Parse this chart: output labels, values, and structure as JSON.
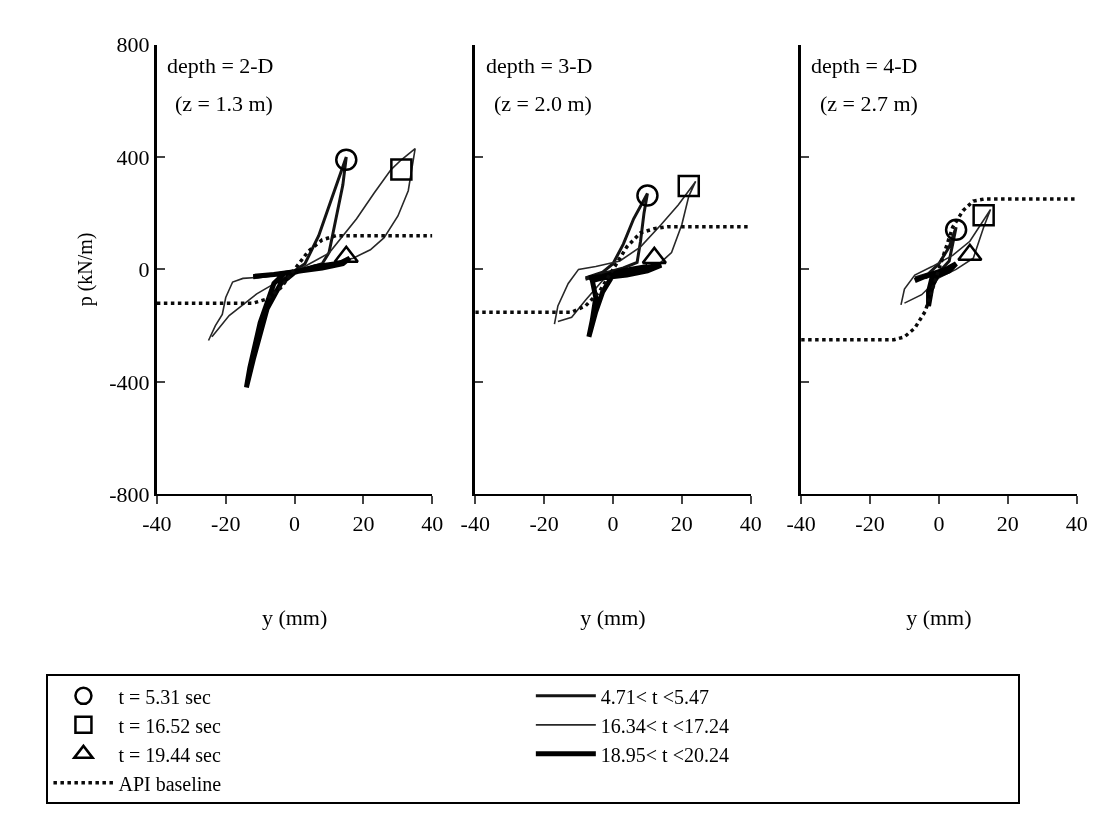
{
  "chart_data": [
    {
      "type": "line",
      "annotations": [
        "depth = 2-D",
        "(z = 1.3 m)"
      ],
      "xlabel": "y (mm)",
      "ylabel": "p (kN/m)",
      "xlim": [
        -40,
        40
      ],
      "xticks": [
        -40,
        -20,
        0,
        20,
        40
      ],
      "ylim": [
        -800,
        800
      ],
      "yticks": [
        -800,
        -400,
        0,
        400,
        800
      ],
      "grid": false,
      "legend": "bottom",
      "series": [
        {
          "name": "t = 5.31 sec",
          "type": "scatter",
          "marker": "circle",
          "color": "#000000",
          "x": [
            15
          ],
          "values": [
            390
          ]
        },
        {
          "name": "4.71< t <5.47",
          "line_style": "solid",
          "marker": "none",
          "color": "#141414",
          "x": [
            -12,
            -5,
            0,
            3,
            7,
            11,
            15,
            14,
            12,
            10,
            8,
            4,
            0,
            -6,
            -12
          ],
          "values": [
            -25,
            -15,
            -5,
            20,
            120,
            260,
            400,
            300,
            180,
            60,
            20,
            5,
            -8,
            -20,
            -30
          ]
        },
        {
          "name": "t = 16.52 sec",
          "type": "scatter",
          "marker": "square",
          "color": "#000000",
          "x": [
            31
          ],
          "values": [
            355
          ]
        },
        {
          "name": "16.34< t <17.24",
          "line_style": "solid",
          "marker": "none",
          "color": "#282828",
          "x": [
            -25,
            -23,
            -21,
            -20,
            -18,
            -15,
            -10,
            -3,
            3,
            10,
            17,
            22,
            26,
            30,
            33,
            35,
            31,
            28,
            23,
            18,
            10,
            0,
            -11,
            -19,
            -24
          ],
          "values": [
            -253,
            -200,
            -160,
            -100,
            -45,
            -32,
            -28,
            -15,
            5,
            20,
            40,
            70,
            113,
            190,
            280,
            430,
            390,
            355,
            270,
            180,
            58,
            -9,
            -87,
            -164,
            -240
          ]
        },
        {
          "name": "t = 19.44 sec",
          "type": "scatter",
          "marker": "triangle",
          "color": "#000000",
          "x": [
            15
          ],
          "values": [
            45
          ]
        },
        {
          "name": "18.95< t <20.24",
          "line_style": "solid",
          "marker": "none",
          "color": "#000000",
          "x": [
            -12,
            -6,
            0,
            6,
            12,
            16,
            14,
            8,
            2,
            -3,
            -6,
            -10,
            -13,
            -14,
            -12,
            -8,
            -4,
            0,
            6,
            12
          ],
          "values": [
            -25,
            -18,
            -8,
            5,
            15,
            40,
            20,
            5,
            -5,
            -15,
            -50,
            -190,
            -350,
            -420,
            -320,
            -140,
            -50,
            -10,
            10,
            20
          ]
        },
        {
          "name": "API baseline",
          "line_style": "dotted",
          "marker": "none",
          "color": "#0a0a0a",
          "x": [
            -40,
            -12,
            -8,
            -4,
            0,
            4,
            8,
            12,
            40
          ],
          "values": [
            -120,
            -120,
            -105,
            -65,
            0,
            65,
            105,
            120,
            120
          ]
        }
      ]
    },
    {
      "type": "line",
      "annotations": [
        "depth = 3-D",
        "(z = 2.0 m)"
      ],
      "xlabel": "y (mm)",
      "xlim": [
        -40,
        40
      ],
      "xticks": [
        -40,
        -20,
        0,
        20,
        40
      ],
      "ylim": [
        -800,
        800
      ],
      "yticks": [
        -800,
        -400,
        0,
        400,
        800
      ],
      "grid": false,
      "tick_labels": "x",
      "series": [
        {
          "type": "scatter",
          "marker": "circle",
          "color": "#000000",
          "x": [
            10
          ],
          "values": [
            263
          ]
        },
        {
          "line_style": "solid",
          "marker": "none",
          "color": "#141414",
          "x": [
            -8,
            -3,
            0,
            3,
            6,
            10,
            9,
            8,
            7,
            3,
            -3,
            -8
          ],
          "values": [
            -30,
            -10,
            20,
            90,
            180,
            270,
            200,
            100,
            25,
            5,
            -15,
            -35
          ]
        },
        {
          "type": "scatter",
          "marker": "square",
          "color": "#000000",
          "x": [
            22
          ],
          "values": [
            297
          ]
        },
        {
          "line_style": "solid",
          "marker": "none",
          "color": "#282828",
          "x": [
            -17,
            -16,
            -13,
            -10,
            -5,
            2,
            8,
            14,
            19,
            24,
            22,
            20,
            17,
            13,
            5,
            -2,
            -8,
            -12,
            -16
          ],
          "values": [
            -195,
            -130,
            -50,
            0,
            10,
            30,
            80,
            160,
            230,
            313,
            260,
            160,
            60,
            15,
            -10,
            -25,
            -110,
            -170,
            -185
          ]
        },
        {
          "type": "scatter",
          "marker": "triangle",
          "color": "#000000",
          "x": [
            12
          ],
          "values": [
            41
          ]
        },
        {
          "line_style": "solid",
          "marker": "none",
          "color": "#000000",
          "x": [
            -7,
            -3,
            3,
            8,
            14,
            10,
            4,
            -3,
            -6,
            -5,
            -6,
            -7,
            -5,
            -3,
            0,
            5,
            10
          ],
          "values": [
            -30,
            -25,
            -5,
            5,
            15,
            -5,
            -20,
            -30,
            -40,
            -100,
            -180,
            -240,
            -150,
            -80,
            -20,
            0,
            10
          ]
        },
        {
          "line_style": "dotted",
          "marker": "none",
          "color": "#0a0a0a",
          "x": [
            -40,
            -12,
            -8,
            -4,
            0,
            4,
            8,
            12,
            16,
            40
          ],
          "values": [
            -152,
            -152,
            -130,
            -80,
            0,
            80,
            130,
            145,
            152,
            152
          ]
        }
      ]
    },
    {
      "type": "line",
      "annotations": [
        "depth = 4-D",
        "(z = 2.7 m)"
      ],
      "xlabel": "y (mm)",
      "xlim": [
        -40,
        40
      ],
      "xticks": [
        -40,
        -20,
        0,
        20,
        40
      ],
      "ylim": [
        -800,
        800
      ],
      "yticks": [
        -800,
        -400,
        0,
        400,
        800
      ],
      "grid": false,
      "tick_labels": "x",
      "series": [
        {
          "type": "scatter",
          "marker": "circle",
          "color": "#000000",
          "x": [
            5
          ],
          "values": [
            141
          ]
        },
        {
          "line_style": "solid",
          "marker": "none",
          "color": "#141414",
          "x": [
            -7,
            -3,
            0,
            3,
            5,
            4,
            3,
            0,
            -4
          ],
          "values": [
            -30,
            -15,
            20,
            80,
            150,
            90,
            30,
            -10,
            -30
          ]
        },
        {
          "type": "scatter",
          "marker": "square",
          "color": "#000000",
          "x": [
            13
          ],
          "values": [
            193
          ]
        },
        {
          "line_style": "solid",
          "marker": "none",
          "color": "#282828",
          "x": [
            -11,
            -10,
            -7,
            -2,
            4,
            9,
            15,
            13,
            10,
            5,
            0,
            -5,
            -10
          ],
          "values": [
            -126,
            -70,
            -20,
            10,
            50,
            100,
            213,
            150,
            40,
            0,
            -30,
            -90,
            -120
          ]
        },
        {
          "type": "scatter",
          "marker": "triangle",
          "color": "#000000",
          "x": [
            9
          ],
          "values": [
            52
          ]
        },
        {
          "line_style": "solid",
          "marker": "none",
          "color": "#000000",
          "x": [
            -7,
            -3,
            2,
            5,
            3,
            -2,
            -3,
            -3,
            -2,
            0,
            4
          ],
          "values": [
            -40,
            -20,
            0,
            20,
            -5,
            -30,
            -80,
            -130,
            -60,
            -10,
            10
          ]
        },
        {
          "line_style": "dotted",
          "marker": "none",
          "color": "#0a0a0a",
          "x": [
            -40,
            -13,
            -10,
            -7,
            -4,
            0,
            4,
            7,
            10,
            13,
            40
          ],
          "values": [
            -250,
            -250,
            -240,
            -209,
            -150,
            0,
            150,
            209,
            243,
            250,
            250
          ]
        }
      ]
    }
  ]
}
